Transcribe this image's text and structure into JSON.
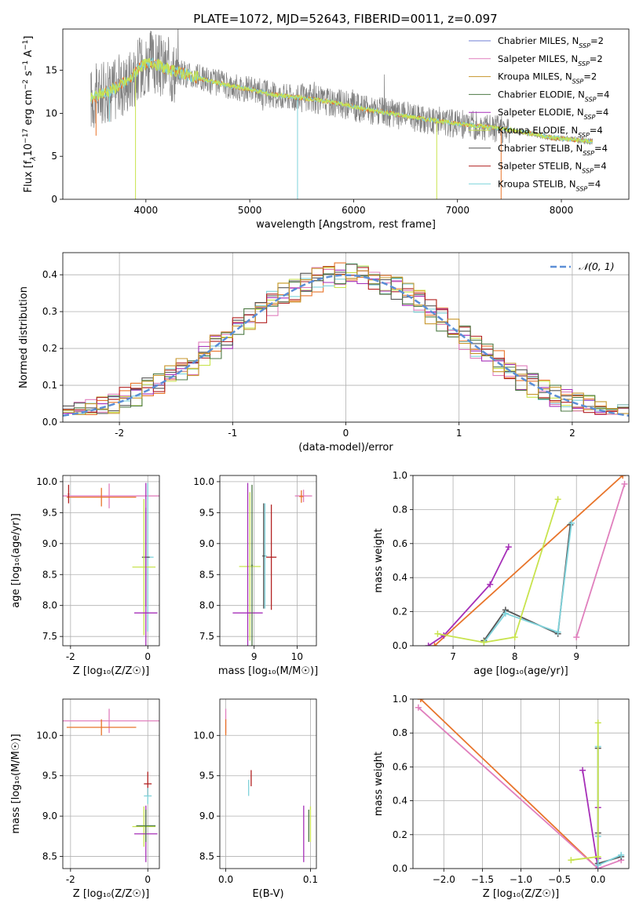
{
  "figure": {
    "title": "PLATE=1072, MJD=52643, FIBERID=0011, z=0.097"
  },
  "chart_data": [
    {
      "id": "spectrum",
      "type": "line",
      "xlabel": "wavelength [Angstrom, rest frame]",
      "ylabel_parts": [
        "Flux [f",
        "λ",
        "10",
        "−17",
        " erg cm",
        "−2",
        " s",
        "−1",
        " A",
        "−1",
        "]"
      ],
      "xlim": [
        3200,
        8650
      ],
      "ylim": [
        0,
        19.8
      ],
      "xticks": [
        4000,
        5000,
        6000,
        7000,
        8000
      ],
      "yticks": [
        0,
        5,
        10,
        15
      ],
      "grid": false,
      "legend_position": "top-right",
      "legend": [
        {
          "text": "Chabrier MILES, N",
          "sub": "SSP",
          "suffix": "=2",
          "color": "#6c7ed4"
        },
        {
          "text": "Salpeter MILES, N",
          "sub": "SSP",
          "suffix": "=2",
          "color": "#e07fbd"
        },
        {
          "text": "Kroupa MILES, N",
          "sub": "SSP",
          "suffix": "=2",
          "color": "#c7962b"
        },
        {
          "text": "Chabrier ELODIE, N",
          "sub": "SSP",
          "suffix": "=4",
          "color": "#4d7a45"
        },
        {
          "text": "Salpeter ELODIE, N",
          "sub": "SSP",
          "suffix": "=4",
          "color": "#a62fb8"
        },
        {
          "text": "Kroupa ELODIE, N",
          "sub": "SSP",
          "suffix": "=4",
          "color": "#c8e34d"
        },
        {
          "text": "Chabrier STELIB, N",
          "sub": "SSP",
          "suffix": "=4",
          "color": "#555555"
        },
        {
          "text": "Salpeter STELIB, N",
          "sub": "SSP",
          "suffix": "=4",
          "color": "#b22222"
        },
        {
          "text": "Kroupa STELIB, N",
          "sub": "SSP",
          "suffix": "=4",
          "color": "#80d4dc"
        }
      ],
      "data_series": {
        "name": "",
        "color": "#808080",
        "wl_range": [
          3470,
          8300
        ]
      },
      "model_series": {
        "colors": [
          "#e8742a",
          "#7fd3db",
          "#c8e34d"
        ],
        "x": [
          3470,
          3550,
          3650,
          3750,
          3850,
          3950,
          4050,
          4150,
          4250,
          4400,
          4600,
          4800,
          5000,
          5200,
          5500,
          5800,
          6100,
          6400,
          6700,
          7000,
          7300,
          7600,
          7900,
          8300
        ],
        "y": [
          11.7,
          12.2,
          12.6,
          13.2,
          14.0,
          15.5,
          16.0,
          15.4,
          15.0,
          14.5,
          13.8,
          13.2,
          12.8,
          12.2,
          11.8,
          11.3,
          10.5,
          9.9,
          9.3,
          8.8,
          8.4,
          7.9,
          7.2,
          6.7
        ]
      }
    },
    {
      "id": "residuals",
      "type": "step",
      "xlabel": "(data-model)/error",
      "ylabel": "Normed distribution",
      "xlim": [
        -2.5,
        2.5
      ],
      "ylim": [
        0,
        0.46
      ],
      "xticks": [
        -2,
        -1,
        0,
        1,
        2
      ],
      "ytick_values": [
        0.0,
        0.1,
        0.2,
        0.3,
        0.4
      ],
      "ytick_labels": [
        "0.0",
        "0.1",
        "0.2",
        "0.3",
        "0.4"
      ],
      "grid": true,
      "legend_position": "top-right",
      "gaussian": {
        "name": "𝒩(0, 1)",
        "color": "#5b8ed6"
      },
      "bin_width": 0.1,
      "series_colors": [
        "#e8742a",
        "#7fd3db",
        "#c8e34d",
        "#e07fbd",
        "#a62fb8",
        "#555555",
        "#b22222",
        "#4d7a45",
        "#c7962b"
      ]
    },
    {
      "id": "age-vs-Z",
      "type": "errorbar",
      "xlabel": "Z [log₁₀(Z/Z☉)]",
      "ylabel": "age  [log₁₀(age/yr)]",
      "xlim": [
        -2.2,
        0.3
      ],
      "ylim": [
        7.35,
        10.1
      ],
      "xticks": [
        -2,
        0
      ],
      "ytick_values": [
        7.5,
        8.0,
        8.5,
        9.0,
        9.5,
        10.0
      ],
      "ytick_labels": [
        "7.5",
        "8.0",
        "8.5",
        "9.0",
        "9.5",
        "10.0"
      ],
      "grid": true,
      "points": [
        {
          "x": -1.0,
          "y": 9.77,
          "xerr": 1.75,
          "yerr": 0.2,
          "color": "#e07fbd"
        },
        {
          "x": -1.2,
          "y": 9.75,
          "xerr": 0.9,
          "yerr": 0.15,
          "color": "#e8742a"
        },
        {
          "x": -2.05,
          "y": 9.8,
          "xerr": 0.02,
          "yerr": 0.15,
          "color": "#b22222"
        },
        {
          "x": 0.0,
          "y": 8.78,
          "xerr": 0.15,
          "yerr": 1.2,
          "color": "#7fd3db"
        },
        {
          "x": -0.05,
          "y": 8.78,
          "xerr": 0.1,
          "yerr": 0.8,
          "color": "#555555"
        },
        {
          "x": -0.1,
          "y": 8.62,
          "xerr": 0.3,
          "yerr": 1.1,
          "color": "#c8e34d"
        },
        {
          "x": -0.05,
          "y": 7.88,
          "xerr": 0.3,
          "yerr": 2.1,
          "color": "#a62fb8"
        }
      ]
    },
    {
      "id": "age-vs-mass",
      "type": "errorbar",
      "xlabel": "mass [log₁₀(M/M☉)]",
      "ylabel": "",
      "xlim": [
        8.2,
        10.45
      ],
      "ylim": [
        7.35,
        10.1
      ],
      "xticks": [
        9,
        10
      ],
      "ytick_values": [
        7.5,
        8.0,
        8.5,
        9.0,
        9.5,
        10.0
      ],
      "ytick_labels": [
        "7.5",
        "8.0",
        "8.5",
        "9.0",
        "9.5",
        "10.0"
      ],
      "grid": true,
      "points": [
        {
          "x": 10.15,
          "y": 9.77,
          "xerr": 0.2,
          "yerr": 0.1,
          "color": "#e07fbd"
        },
        {
          "x": 10.1,
          "y": 9.76,
          "xerr": 0.05,
          "yerr": 0.1,
          "color": "#e8742a"
        },
        {
          "x": 9.4,
          "y": 8.78,
          "xerr": 0.12,
          "yerr": 0.85,
          "color": "#b22222"
        },
        {
          "x": 9.25,
          "y": 8.8,
          "xerr": 0.05,
          "yerr": 0.85,
          "color": "#7fd3db"
        },
        {
          "x": 9.22,
          "y": 8.8,
          "xerr": 0.03,
          "yerr": 0.85,
          "color": "#555555"
        },
        {
          "x": 8.9,
          "y": 8.63,
          "xerr": 0.25,
          "yerr": 1.2,
          "color": "#c8e34d"
        },
        {
          "x": 8.85,
          "y": 7.88,
          "xerr": 0.35,
          "yerr": 2.1,
          "color": "#a62fb8"
        },
        {
          "x": 8.95,
          "y": 8.65,
          "xerr": 0.02,
          "yerr": 1.3,
          "color": "#4d7a45"
        }
      ]
    },
    {
      "id": "weight-vs-age",
      "type": "line",
      "xlabel": "age  [log₁₀(age/yr)]",
      "ylabel": "mass weight",
      "xlim": [
        6.35,
        9.85
      ],
      "ylim": [
        0,
        1
      ],
      "xticks": [
        7,
        8,
        9
      ],
      "ytick_values": [
        0.0,
        0.2,
        0.4,
        0.6,
        0.8,
        1.0
      ],
      "ytick_labels": [
        "0.0",
        "0.2",
        "0.4",
        "0.6",
        "0.8",
        "1.0"
      ],
      "grid": true,
      "series": [
        {
          "color": "#e8742a",
          "x": [
            6.7,
            9.75
          ],
          "y": [
            0.0,
            1.0
          ]
        },
        {
          "color": "#e07fbd",
          "x": [
            9.0,
            9.78
          ],
          "y": [
            0.05,
            0.95
          ]
        },
        {
          "color": "#a62fb8",
          "x": [
            6.6,
            6.85,
            7.6,
            7.9
          ],
          "y": [
            0.0,
            0.06,
            0.36,
            0.58
          ]
        },
        {
          "color": "#555555",
          "x": [
            7.5,
            7.85,
            8.7,
            8.9
          ],
          "y": [
            0.03,
            0.21,
            0.07,
            0.71
          ]
        },
        {
          "color": "#7fd3db",
          "x": [
            7.5,
            7.85,
            8.7,
            8.92
          ],
          "y": [
            0.02,
            0.19,
            0.08,
            0.72
          ]
        },
        {
          "color": "#c8e34d",
          "x": [
            6.75,
            7.5,
            8.0,
            8.7
          ],
          "y": [
            0.07,
            0.02,
            0.05,
            0.86
          ]
        }
      ]
    },
    {
      "id": "mass-vs-Z",
      "type": "errorbar",
      "xlabel": "Z [log₁₀(Z/Z☉)]",
      "ylabel": "mass [log₁₀(M/M☉)]",
      "xlim": [
        -2.2,
        0.3
      ],
      "ylim": [
        8.35,
        10.45
      ],
      "xticks": [
        -2,
        0
      ],
      "ytick_values": [
        8.5,
        9.0,
        9.5,
        10.0
      ],
      "ytick_labels": [
        "8.5",
        "9.0",
        "9.5",
        "10.0"
      ],
      "grid": true,
      "points": [
        {
          "x": -1.0,
          "y": 10.18,
          "xerr": 1.75,
          "yerr": 0.15,
          "color": "#e07fbd"
        },
        {
          "x": -1.2,
          "y": 10.1,
          "xerr": 0.9,
          "yerr": 0.1,
          "color": "#e8742a"
        },
        {
          "x": 0.0,
          "y": 9.4,
          "xerr": 0.1,
          "yerr": 0.15,
          "color": "#b22222"
        },
        {
          "x": 0.0,
          "y": 9.25,
          "xerr": 0.1,
          "yerr": 0.1,
          "color": "#7fd3db"
        },
        {
          "x": -0.1,
          "y": 8.87,
          "xerr": 0.3,
          "yerr": 0.25,
          "color": "#c8e34d"
        },
        {
          "x": -0.05,
          "y": 8.78,
          "xerr": 0.3,
          "yerr": 0.35,
          "color": "#a62fb8"
        },
        {
          "x": -0.05,
          "y": 8.88,
          "xerr": 0.25,
          "yerr": 0.2,
          "color": "#4d7a45"
        }
      ]
    },
    {
      "id": "mass-vs-ebv",
      "type": "errorbar",
      "xlabel": "E(B-V)",
      "ylabel": "",
      "xlim": [
        -0.007,
        0.107
      ],
      "ylim": [
        8.35,
        10.45
      ],
      "xtick_values": [
        0.0,
        0.1
      ],
      "xtick_labels": [
        "0.0",
        "0.1"
      ],
      "ytick_values": [
        8.5,
        9.0,
        9.5,
        10.0
      ],
      "ytick_labels": [
        "8.5",
        "9.0",
        "9.5",
        "10.0"
      ],
      "grid": true,
      "points": [
        {
          "x": 0.0,
          "y": 10.18,
          "xerr": 0.0,
          "yerr": 0.15,
          "color": "#e07fbd"
        },
        {
          "x": 0.0,
          "y": 10.1,
          "xerr": 0.0,
          "yerr": 0.1,
          "color": "#e8742a"
        },
        {
          "x": 0.03,
          "y": 9.47,
          "xerr": 0.0,
          "yerr": 0.1,
          "color": "#b22222"
        },
        {
          "x": 0.027,
          "y": 9.35,
          "xerr": 0.0,
          "yerr": 0.1,
          "color": "#7fd3db"
        },
        {
          "x": 0.1,
          "y": 8.9,
          "xerr": 0.0,
          "yerr": 0.22,
          "color": "#c8e34d"
        },
        {
          "x": 0.092,
          "y": 8.78,
          "xerr": 0.0,
          "yerr": 0.35,
          "color": "#a62fb8"
        },
        {
          "x": 0.098,
          "y": 8.88,
          "xerr": 0.0,
          "yerr": 0.2,
          "color": "#4d7a45"
        }
      ]
    },
    {
      "id": "weight-vs-Z",
      "type": "line",
      "xlabel": "Z [log₁₀(Z/Z☉)]",
      "ylabel": "mass weight",
      "xlim": [
        -2.4,
        0.4
      ],
      "ylim": [
        0,
        1
      ],
      "xtick_values": [
        -2.0,
        -1.5,
        -1.0,
        -0.5,
        0.0
      ],
      "xtick_labels": [
        "−2.0",
        "−1.5",
        "−1.0",
        "−0.5",
        "0.0"
      ],
      "ytick_values": [
        0.0,
        0.2,
        0.4,
        0.6,
        0.8,
        1.0
      ],
      "ytick_labels": [
        "0.0",
        "0.2",
        "0.4",
        "0.6",
        "0.8",
        "1.0"
      ],
      "grid": true,
      "series": [
        {
          "color": "#e8742a",
          "x": [
            -2.3,
            0.0
          ],
          "y": [
            1.0,
            0.0
          ]
        },
        {
          "color": "#e07fbd",
          "x": [
            -2.33,
            0.0,
            0.3
          ],
          "y": [
            0.95,
            0.0,
            0.05
          ]
        },
        {
          "color": "#a62fb8",
          "x": [
            -0.2,
            0.0,
            0.0,
            0.0
          ],
          "y": [
            0.58,
            0.0,
            0.36,
            0.06
          ]
        },
        {
          "color": "#555555",
          "x": [
            0.0,
            0.0,
            0.0,
            0.3
          ],
          "y": [
            0.71,
            0.21,
            0.03,
            0.07
          ]
        },
        {
          "color": "#7fd3db",
          "x": [
            0.0,
            0.0,
            0.0,
            0.3
          ],
          "y": [
            0.72,
            0.19,
            0.02,
            0.08
          ]
        },
        {
          "color": "#c8e34d",
          "x": [
            -0.35,
            0.0,
            0.0
          ],
          "y": [
            0.05,
            0.07,
            0.86
          ]
        }
      ]
    }
  ]
}
